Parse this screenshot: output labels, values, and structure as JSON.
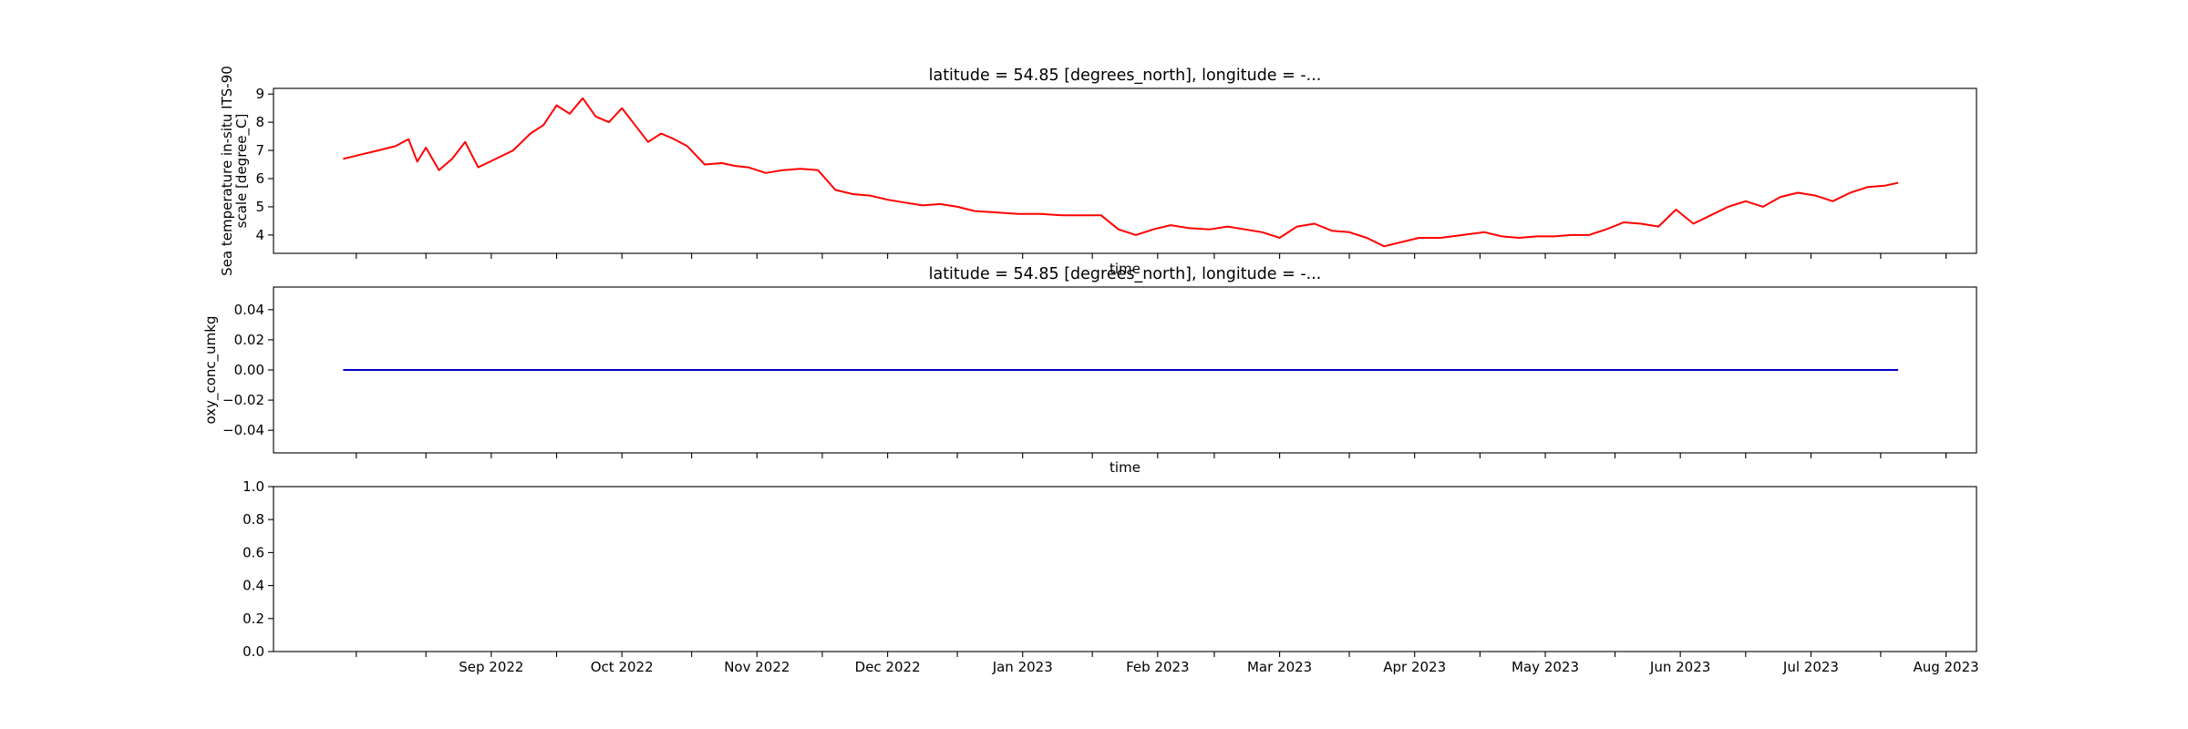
{
  "chart_data": [
    {
      "type": "line",
      "title": "latitude = 54.85 [degrees_north], longitude = -...",
      "xlabel": "time",
      "ylabel_lines": [
        "Sea temperature in-situ ITS-90",
        "scale [degree_C]"
      ],
      "xlim": [
        "2022-07-28",
        "2023-08-23"
      ],
      "ylim": [
        3.35,
        9.2
      ],
      "yticks": [
        4,
        5,
        6,
        7,
        8,
        9
      ],
      "ytick_labels": [
        "4",
        "5",
        "6",
        "7",
        "8",
        "9"
      ],
      "show_xticklabels": false,
      "grid": false,
      "color": "#ff0000",
      "series": [
        {
          "x": [
            "2022-08-13",
            "2022-08-17",
            "2022-08-21",
            "2022-08-25",
            "2022-08-28",
            "2022-08-30",
            "2022-09-01",
            "2022-09-04",
            "2022-09-07",
            "2022-09-10",
            "2022-09-13",
            "2022-09-17",
            "2022-09-21",
            "2022-09-25",
            "2022-09-28",
            "2022-10-01",
            "2022-10-04",
            "2022-10-07",
            "2022-10-10",
            "2022-10-13",
            "2022-10-16",
            "2022-10-19",
            "2022-10-22",
            "2022-10-25",
            "2022-10-28",
            "2022-10-31",
            "2022-11-04",
            "2022-11-08",
            "2022-11-11",
            "2022-11-14",
            "2022-11-18",
            "2022-11-22",
            "2022-11-26",
            "2022-11-30",
            "2022-12-04",
            "2022-12-08",
            "2022-12-12",
            "2022-12-16",
            "2022-12-20",
            "2022-12-24",
            "2022-12-28",
            "2023-01-01",
            "2023-01-05",
            "2023-01-10",
            "2023-01-15",
            "2023-01-20",
            "2023-01-25",
            "2023-01-30",
            "2023-02-03",
            "2023-02-07",
            "2023-02-11",
            "2023-02-15",
            "2023-02-19",
            "2023-02-23",
            "2023-02-28",
            "2023-03-04",
            "2023-03-08",
            "2023-03-12",
            "2023-03-16",
            "2023-03-20",
            "2023-03-24",
            "2023-03-28",
            "2023-04-01",
            "2023-04-05",
            "2023-04-09",
            "2023-04-13",
            "2023-04-17",
            "2023-04-22",
            "2023-04-27",
            "2023-05-02",
            "2023-05-06",
            "2023-05-10",
            "2023-05-14",
            "2023-05-18",
            "2023-05-22",
            "2023-05-26",
            "2023-05-30",
            "2023-06-03",
            "2023-06-07",
            "2023-06-11",
            "2023-06-15",
            "2023-06-19",
            "2023-06-23",
            "2023-06-27",
            "2023-07-01",
            "2023-07-05",
            "2023-07-09",
            "2023-07-13",
            "2023-07-17",
            "2023-07-21",
            "2023-07-25",
            "2023-07-29",
            "2023-08-02",
            "2023-08-05"
          ],
          "y": [
            6.7,
            6.85,
            7.0,
            7.15,
            7.4,
            6.6,
            7.1,
            6.3,
            6.7,
            7.3,
            6.4,
            6.7,
            7.0,
            7.6,
            7.9,
            8.6,
            8.3,
            8.85,
            8.2,
            8.0,
            8.5,
            7.9,
            7.3,
            7.6,
            7.4,
            7.15,
            6.5,
            6.55,
            6.45,
            6.4,
            6.2,
            6.3,
            6.35,
            6.3,
            5.6,
            5.45,
            5.4,
            5.25,
            5.15,
            5.05,
            5.1,
            5.0,
            4.85,
            4.8,
            4.75,
            4.75,
            4.7,
            4.7,
            4.7,
            4.2,
            4.0,
            4.2,
            4.35,
            4.25,
            4.2,
            4.3,
            4.2,
            4.1,
            3.9,
            4.3,
            4.4,
            4.15,
            4.1,
            3.9,
            3.6,
            3.75,
            3.9,
            3.9,
            4.0,
            4.1,
            3.95,
            3.9,
            3.95,
            3.95,
            4.0,
            4.0,
            4.2,
            4.45,
            4.4,
            4.3,
            4.9,
            4.4,
            4.7,
            5.0,
            5.2,
            5.0,
            5.35,
            5.5,
            5.4,
            5.2,
            5.5,
            5.7,
            5.75,
            5.85
          ]
        }
      ]
    },
    {
      "type": "line",
      "title": "latitude = 54.85 [degrees_north], longitude = -...",
      "xlabel": "time",
      "ylabel": "oxy_conc_umkg",
      "xlim": [
        "2022-07-28",
        "2023-08-23"
      ],
      "ylim": [
        -0.055,
        0.055
      ],
      "yticks": [
        -0.04,
        -0.02,
        0.0,
        0.02,
        0.04
      ],
      "ytick_labels": [
        "−0.04",
        "−0.02",
        "0.00",
        "0.02",
        "0.04"
      ],
      "show_xticklabels": false,
      "grid": false,
      "color": "#0000cc",
      "series": [
        {
          "x": [
            "2022-08-13",
            "2023-08-05"
          ],
          "y": [
            0.0,
            0.0
          ]
        }
      ]
    },
    {
      "type": "line",
      "title": "",
      "xlabel": "",
      "ylabel": "",
      "xlim": [
        "2022-07-28",
        "2023-08-23"
      ],
      "ylim": [
        0.0,
        1.0
      ],
      "yticks": [
        0.0,
        0.2,
        0.4,
        0.6,
        0.8,
        1.0
      ],
      "ytick_labels": [
        "0.0",
        "0.2",
        "0.4",
        "0.6",
        "0.8",
        "1.0"
      ],
      "show_xticklabels": true,
      "xticks": [
        "2022-09-01",
        "2022-10-01",
        "2022-11-01",
        "2022-12-01",
        "2023-01-01",
        "2023-02-01",
        "2023-03-01",
        "2023-04-01",
        "2023-05-01",
        "2023-06-01",
        "2023-07-01",
        "2023-08-01"
      ],
      "xtick_labels": [
        "Sep 2022",
        "Oct 2022",
        "Nov 2022",
        "Dec 2022",
        "Jan 2023",
        "Feb 2023",
        "Mar 2023",
        "Apr 2023",
        "May 2023",
        "Jun 2023",
        "Jul 2023",
        "Aug 2023"
      ],
      "grid": false,
      "series": []
    }
  ]
}
